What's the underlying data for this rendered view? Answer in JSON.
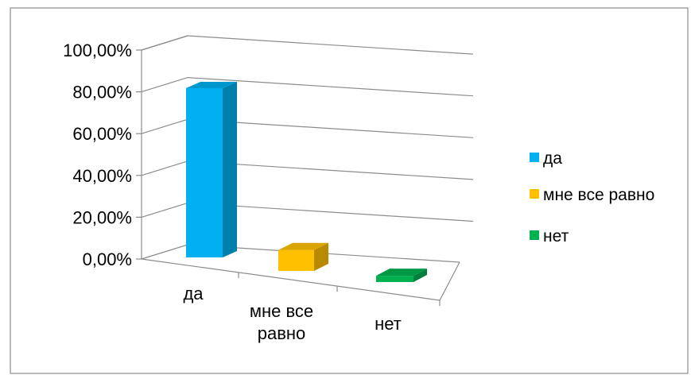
{
  "chart_data": {
    "type": "bar",
    "categories": [
      "да",
      "мне все равно",
      "нет"
    ],
    "category_tick_labels": [
      [
        "да"
      ],
      [
        "мне все",
        "равно"
      ],
      [
        "нет"
      ]
    ],
    "values": [
      81,
      10,
      3
    ],
    "unit": "%",
    "ylim": [
      0,
      100
    ],
    "yticks": [
      "0,00%",
      "20,00%",
      "40,00%",
      "60,00%",
      "80,00%",
      "100,00%"
    ],
    "grid": true,
    "three_d": true,
    "legend": {
      "position": "right",
      "entries": [
        "да",
        "мне все равно",
        "нет"
      ]
    },
    "colors": {
      "да": "#00b0f0",
      "мне все равно": "#ffc000",
      "нет": "#00b050"
    },
    "title": "",
    "xlabel": "",
    "ylabel": ""
  }
}
